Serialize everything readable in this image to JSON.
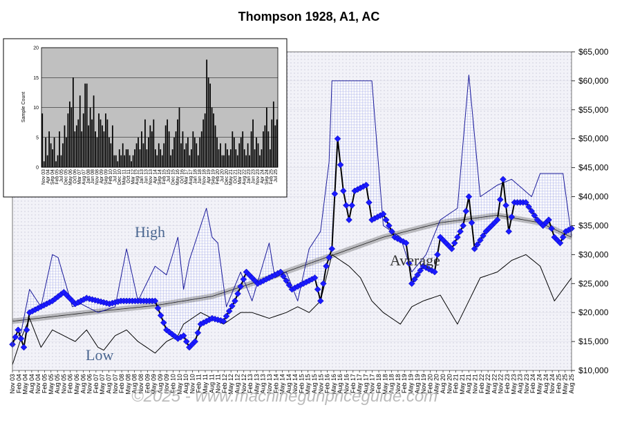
{
  "chart_data": [
    {
      "type": "line",
      "title": "Thompson 1928, A1, AC",
      "ylim": [
        10000,
        65000
      ],
      "y_ticks": [
        "$10,000",
        "$15,000",
        "$20,000",
        "$25,000",
        "$30,000",
        "$35,000",
        "$40,000",
        "$45,000",
        "$50,000",
        "$55,000",
        "$60,000",
        "$65,000"
      ],
      "x_ticks": [
        "Nov 03",
        "Feb 04",
        "May 04",
        "Aug 04",
        "Nov 04",
        "Feb 05",
        "May 05",
        "Aug 05",
        "Nov 05",
        "Feb 06",
        "May 06",
        "Aug 06",
        "Nov 06",
        "Feb 07",
        "May 07",
        "Aug 07",
        "Nov 07",
        "Feb 08",
        "May 08",
        "Aug 08",
        "Nov 08",
        "Feb 09",
        "May 09",
        "Aug 09",
        "Nov 09",
        "Feb 10",
        "May 10",
        "Aug 10",
        "Nov 10",
        "Feb 11",
        "May 11",
        "Aug 11",
        "Nov 11",
        "Feb 12",
        "May 12",
        "Aug 12",
        "Nov 12",
        "Feb 13",
        "May 13",
        "Aug 13",
        "Nov 13",
        "Feb 14",
        "May 14",
        "Aug 14",
        "Nov 14",
        "Feb 15",
        "May 15",
        "Aug 15",
        "Nov 15",
        "Feb 16",
        "May 16",
        "Aug 16",
        "Nov 16",
        "Feb 17",
        "May 17",
        "Aug 17",
        "Nov 17",
        "Feb 18",
        "May 18",
        "Aug 18",
        "Nov 18",
        "Feb 19",
        "May 19",
        "Aug 19",
        "Nov 19",
        "Feb 20",
        "May 20",
        "Aug 20",
        "Nov 20",
        "Feb 21",
        "May 21",
        "Aug 21",
        "Nov 21",
        "Feb 22",
        "May 22",
        "Aug 22",
        "Nov 22",
        "Feb 23",
        "May 23",
        "Aug 23",
        "Nov 23",
        "Feb 24",
        "May 24",
        "Aug 24",
        "Nov 24",
        "Feb 25",
        "May 25",
        "Aug 25"
      ],
      "labels": {
        "high": "High",
        "low": "Low",
        "average": "Average"
      },
      "series": [
        {
          "name": "High",
          "color": "#1a1a9a",
          "anchors": [
            [
              0,
              15000
            ],
            [
              3,
              16500
            ],
            [
              6,
              24000
            ],
            [
              10,
              21000
            ],
            [
              14,
              30000
            ],
            [
              16,
              29500
            ],
            [
              21,
              21000
            ],
            [
              24,
              21500
            ],
            [
              30,
              20000
            ],
            [
              36,
              21000
            ],
            [
              40,
              31000
            ],
            [
              44,
              22000
            ],
            [
              50,
              28000
            ],
            [
              54,
              26500
            ],
            [
              58,
              33000
            ],
            [
              60,
              24000
            ],
            [
              62,
              29000
            ],
            [
              66,
              35000
            ],
            [
              68,
              38000
            ],
            [
              70,
              33000
            ],
            [
              72,
              32000
            ],
            [
              75,
              21000
            ],
            [
              80,
              27000
            ],
            [
              84,
              22000
            ],
            [
              90,
              32000
            ],
            [
              92,
              26000
            ],
            [
              96,
              27000
            ],
            [
              100,
              22000
            ],
            [
              104,
              31000
            ],
            [
              108,
              34000
            ],
            [
              111,
              46000
            ],
            [
              112,
              60000
            ],
            [
              126,
              60000
            ],
            [
              130,
              35000
            ],
            [
              136,
              33000
            ],
            [
              140,
              27000
            ],
            [
              145,
              30000
            ],
            [
              150,
              36000
            ],
            [
              156,
              38000
            ],
            [
              160,
              61000
            ],
            [
              164,
              40000
            ],
            [
              170,
              42000
            ],
            [
              175,
              43000
            ],
            [
              182,
              40000
            ],
            [
              185,
              44000
            ],
            [
              193,
              44000
            ],
            [
              196,
              33000
            ]
          ]
        },
        {
          "name": "Low",
          "color": "#000000",
          "anchors": [
            [
              0,
              11000
            ],
            [
              3,
              15500
            ],
            [
              6,
              19000
            ],
            [
              10,
              14000
            ],
            [
              14,
              17000
            ],
            [
              18,
              16000
            ],
            [
              22,
              15000
            ],
            [
              26,
              17000
            ],
            [
              30,
              14000
            ],
            [
              32,
              13500
            ],
            [
              36,
              16000
            ],
            [
              40,
              17000
            ],
            [
              44,
              15000
            ],
            [
              50,
              13000
            ],
            [
              54,
              15000
            ],
            [
              58,
              16000
            ],
            [
              60,
              18000
            ],
            [
              66,
              20000
            ],
            [
              70,
              19000
            ],
            [
              74,
              18000
            ],
            [
              80,
              20000
            ],
            [
              84,
              20000
            ],
            [
              90,
              19000
            ],
            [
              96,
              20000
            ],
            [
              100,
              21000
            ],
            [
              104,
              20000
            ],
            [
              108,
              22000
            ],
            [
              112,
              30000
            ],
            [
              118,
              28000
            ],
            [
              122,
              26000
            ],
            [
              126,
              22000
            ],
            [
              130,
              20000
            ],
            [
              136,
              18000
            ],
            [
              140,
              21000
            ],
            [
              144,
              22000
            ],
            [
              150,
              23000
            ],
            [
              156,
              18000
            ],
            [
              160,
              22000
            ],
            [
              164,
              26000
            ],
            [
              170,
              27000
            ],
            [
              175,
              29000
            ],
            [
              180,
              30000
            ],
            [
              185,
              28000
            ],
            [
              190,
              22000
            ],
            [
              193,
              24000
            ],
            [
              196,
              26000
            ]
          ]
        },
        {
          "name": "Average",
          "color": "#000000",
          "anchors": [
            [
              0,
              14500
            ],
            [
              2,
              17000
            ],
            [
              4,
              14000
            ],
            [
              6,
              20000
            ],
            [
              10,
              21000
            ],
            [
              14,
              22000
            ],
            [
              18,
              23500
            ],
            [
              22,
              21500
            ],
            [
              26,
              22500
            ],
            [
              30,
              22000
            ],
            [
              34,
              21500
            ],
            [
              38,
              22000
            ],
            [
              42,
              22000
            ],
            [
              46,
              22000
            ],
            [
              50,
              22000
            ],
            [
              54,
              17000
            ],
            [
              58,
              15500
            ],
            [
              60,
              16000
            ],
            [
              62,
              14000
            ],
            [
              64,
              15000
            ],
            [
              66,
              18000
            ],
            [
              70,
              19000
            ],
            [
              74,
              18500
            ],
            [
              78,
              22000
            ],
            [
              82,
              27000
            ],
            [
              86,
              25000
            ],
            [
              90,
              26000
            ],
            [
              94,
              27000
            ],
            [
              98,
              24000
            ],
            [
              102,
              25000
            ],
            [
              106,
              26000
            ],
            [
              108,
              22000
            ],
            [
              110,
              28000
            ],
            [
              112,
              31000
            ],
            [
              114,
              50000
            ],
            [
              116,
              41000
            ],
            [
              118,
              36000
            ],
            [
              120,
              41000
            ],
            [
              124,
              42000
            ],
            [
              126,
              36000
            ],
            [
              130,
              37000
            ],
            [
              134,
              33000
            ],
            [
              138,
              32000
            ],
            [
              140,
              25000
            ],
            [
              144,
              28000
            ],
            [
              148,
              27000
            ],
            [
              150,
              33000
            ],
            [
              154,
              31000
            ],
            [
              158,
              35000
            ],
            [
              160,
              40000
            ],
            [
              162,
              31000
            ],
            [
              166,
              34000
            ],
            [
              170,
              36000
            ],
            [
              172,
              43000
            ],
            [
              174,
              34000
            ],
            [
              176,
              39000
            ],
            [
              180,
              39000
            ],
            [
              184,
              36000
            ],
            [
              186,
              35000
            ],
            [
              188,
              36000
            ],
            [
              190,
              33000
            ],
            [
              192,
              32000
            ],
            [
              194,
              34000
            ],
            [
              196,
              34500
            ]
          ]
        },
        {
          "name": "Trend",
          "color": "#555555",
          "anchors": [
            [
              0,
              18500
            ],
            [
              30,
              20200
            ],
            [
              50,
              21200
            ],
            [
              70,
              22800
            ],
            [
              90,
              26000
            ],
            [
              110,
              29500
            ],
            [
              130,
              33000
            ],
            [
              150,
              35500
            ],
            [
              170,
              36800
            ],
            [
              185,
              35500
            ],
            [
              196,
              33000
            ]
          ]
        }
      ]
    },
    {
      "type": "bar",
      "title": "",
      "ylabel": "Sample Count",
      "ylim": [
        0,
        20
      ],
      "y_ticks": [
        "0",
        "5",
        "10",
        "15",
        "20"
      ],
      "x_ticks": [
        "Nov 03",
        "Apr 04",
        "Sep 04",
        "Feb 05",
        "Jul 05",
        "Dec 05",
        "May 06",
        "Oct 06",
        "Mar 07",
        "Aug 07",
        "Jan 08",
        "Jun 08",
        "Nov 08",
        "Apr 09",
        "Sep 09",
        "Feb 10",
        "Jul 10",
        "Dec 10",
        "May 11",
        "Oct 11",
        "Mar 12",
        "Aug 12",
        "Jan 13",
        "Jun 13",
        "Nov 13",
        "Apr 14",
        "Sep 14",
        "Feb 15",
        "Jul 15",
        "Dec 15",
        "May 16",
        "Oct 16",
        "Mar 17",
        "Aug 17",
        "Jan 18",
        "Jun 18",
        "Nov 18",
        "Apr 19",
        "Sep 19",
        "Feb 20",
        "Jul 20",
        "Dec 20",
        "May 21",
        "Oct 21",
        "Mar 22",
        "Aug 22",
        "Jan 23",
        "Jun 23",
        "Nov 23",
        "Apr 24",
        "Sep 24",
        "Feb 25",
        "Jul 25"
      ],
      "values": [
        9,
        1,
        5,
        2,
        6,
        4,
        3,
        5,
        1,
        2,
        6,
        2,
        4,
        7,
        5,
        9,
        11,
        10,
        15,
        6,
        7,
        8,
        12,
        6,
        9,
        14,
        14,
        7,
        10,
        8,
        12,
        6,
        5,
        9,
        8,
        7,
        6,
        9,
        8,
        5,
        4,
        7,
        2,
        2,
        1,
        3,
        2,
        4,
        2,
        3,
        3,
        2,
        1,
        2,
        3,
        4,
        5,
        3,
        6,
        4,
        8,
        3,
        5,
        7,
        6,
        8,
        3,
        2,
        4,
        3,
        2,
        4,
        7,
        8,
        6,
        2,
        3,
        5,
        6,
        8,
        10,
        4,
        6,
        3,
        4,
        5,
        2,
        3,
        6,
        5,
        4,
        2,
        5,
        6,
        8,
        9,
        18,
        15,
        14,
        10,
        9,
        7,
        5,
        3,
        4,
        2,
        2,
        4,
        3,
        2,
        3,
        6,
        5,
        3,
        2,
        4,
        5,
        6,
        3,
        2,
        4,
        2,
        6,
        8,
        3,
        5,
        4,
        2,
        3,
        6,
        7,
        10,
        6,
        3,
        8,
        11,
        7,
        8
      ],
      "watermark": "©2025 - www.machinegunpriceguide.com"
    }
  ]
}
